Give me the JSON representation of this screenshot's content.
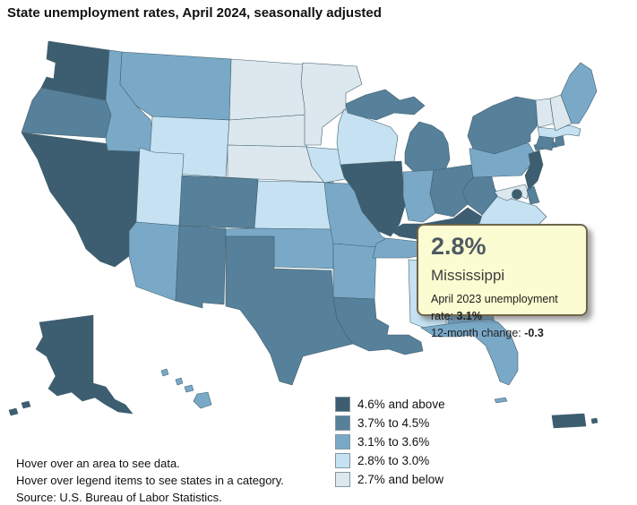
{
  "title": "State unemployment rates, April 2024, seasonally adjusted",
  "tooltip": {
    "value": "2.8%",
    "state": "Mississippi",
    "prev_label": "April 2023 unemployment rate:",
    "prev_value": "3.1%",
    "change_label": "12-month change:",
    "change_value": "-0.3"
  },
  "legend": {
    "items": [
      {
        "key": "cat5",
        "label": "4.6% and above",
        "color": "#3d5d70"
      },
      {
        "key": "cat4",
        "label": "3.7% to 4.5%",
        "color": "#57809a"
      },
      {
        "key": "cat3",
        "label": "3.1% to 3.6%",
        "color": "#7aa9c8"
      },
      {
        "key": "cat2",
        "label": "2.8% to 3.0%",
        "color": "#c5e1f2"
      },
      {
        "key": "cat1",
        "label": "2.7% and below",
        "color": "#dce7ee"
      }
    ]
  },
  "notes": [
    "Hover over an area to see data.",
    "Hover over legend items to see states in a category."
  ],
  "source": "Source: U.S. Bureau of Labor Statistics.",
  "map": {
    "highlight_color": "#eef233",
    "border_color": "#40606e",
    "highlighted_state": "MS",
    "states": [
      {
        "id": "WA",
        "category": "cat5"
      },
      {
        "id": "OR",
        "category": "cat4"
      },
      {
        "id": "CA",
        "category": "cat5"
      },
      {
        "id": "NV",
        "category": "cat5"
      },
      {
        "id": "ID",
        "category": "cat3"
      },
      {
        "id": "MT",
        "category": "cat3"
      },
      {
        "id": "WY",
        "category": "cat2"
      },
      {
        "id": "UT",
        "category": "cat2"
      },
      {
        "id": "CO",
        "category": "cat4"
      },
      {
        "id": "AZ",
        "category": "cat3"
      },
      {
        "id": "NM",
        "category": "cat4"
      },
      {
        "id": "ND",
        "category": "cat1"
      },
      {
        "id": "SD",
        "category": "cat1"
      },
      {
        "id": "NE",
        "category": "cat1"
      },
      {
        "id": "KS",
        "category": "cat2"
      },
      {
        "id": "OK",
        "category": "cat3"
      },
      {
        "id": "TX",
        "category": "cat4"
      },
      {
        "id": "MN",
        "category": "cat1"
      },
      {
        "id": "IA",
        "category": "cat2"
      },
      {
        "id": "MO",
        "category": "cat3"
      },
      {
        "id": "AR",
        "category": "cat3"
      },
      {
        "id": "LA",
        "category": "cat4"
      },
      {
        "id": "WI",
        "category": "cat2"
      },
      {
        "id": "IL",
        "category": "cat5"
      },
      {
        "id": "MI",
        "category": "cat4"
      },
      {
        "id": "IN",
        "category": "cat3"
      },
      {
        "id": "OH",
        "category": "cat4"
      },
      {
        "id": "KY",
        "category": "cat5"
      },
      {
        "id": "TN",
        "category": "cat3"
      },
      {
        "id": "AL",
        "category": "cat2"
      },
      {
        "id": "GA",
        "category": "cat3"
      },
      {
        "id": "FL",
        "category": "cat3"
      },
      {
        "id": "SC",
        "category": "cat3"
      },
      {
        "id": "NC",
        "category": "cat3"
      },
      {
        "id": "VA",
        "category": "cat2"
      },
      {
        "id": "WV",
        "category": "cat4"
      },
      {
        "id": "MD",
        "category": "cat1"
      },
      {
        "id": "DE",
        "category": "cat4"
      },
      {
        "id": "PA",
        "category": "cat3"
      },
      {
        "id": "NY",
        "category": "cat4"
      },
      {
        "id": "NJ",
        "category": "cat5"
      },
      {
        "id": "CT",
        "category": "cat4"
      },
      {
        "id": "RI",
        "category": "cat4"
      },
      {
        "id": "MA",
        "category": "cat2"
      },
      {
        "id": "VT",
        "category": "cat1"
      },
      {
        "id": "NH",
        "category": "cat1"
      },
      {
        "id": "ME",
        "category": "cat3"
      },
      {
        "id": "AK",
        "category": "cat5"
      },
      {
        "id": "HI",
        "category": "cat3"
      },
      {
        "id": "PR",
        "category": "cat5"
      },
      {
        "id": "MS",
        "category": "cat2",
        "highlighted": true
      },
      {
        "id": "DC",
        "category": "cat5"
      }
    ]
  }
}
